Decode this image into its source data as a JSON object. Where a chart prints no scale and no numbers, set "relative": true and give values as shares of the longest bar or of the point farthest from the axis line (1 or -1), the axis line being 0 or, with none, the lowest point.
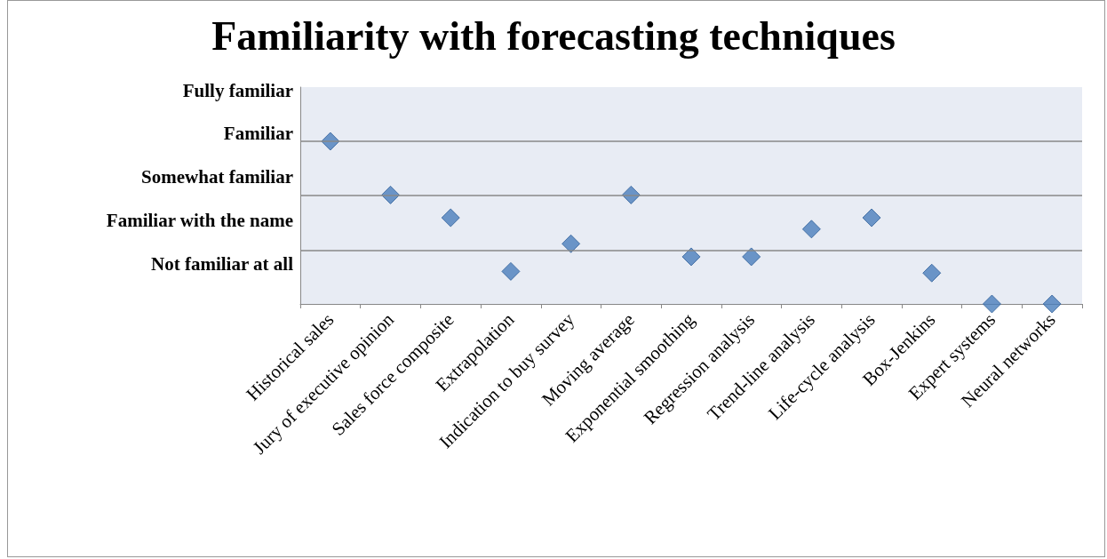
{
  "chart_data": {
    "type": "scatter",
    "title": "Familiarity with forecasting techniques",
    "categories": [
      "Historical sales",
      "Jury of executive opinion",
      "Sales force composite",
      "Extrapolation",
      "Indication to buy survey",
      "Moving average",
      "Exponential smoothing",
      "Regression analysis",
      "Trend-line analysis",
      "Life-cycle analysis",
      "Box-Jenkins",
      "Expert systems",
      "Neural networks"
    ],
    "series": [
      {
        "color": "#4a7ebb",
        "values": [
          1,
          0.67,
          0.53,
          0.2,
          0.37,
          0.67,
          0.29,
          0.29,
          0.46,
          0.53,
          0.19,
          0,
          0
        ]
      }
    ],
    "relative": true,
    "annotations": [
      "Fully familiar",
      "Familiar",
      "Somewhat familiar",
      "Familiar with the name",
      "Not familiar at all"
    ],
    "ref_lines": [
      {
        "axis": "y",
        "value": 0.33,
        "color": "#888888"
      },
      {
        "axis": "y",
        "value": 0.67,
        "color": "#888888"
      },
      {
        "axis": "y",
        "value": 1,
        "color": "#888888"
      }
    ],
    "marker": "diamond"
  }
}
